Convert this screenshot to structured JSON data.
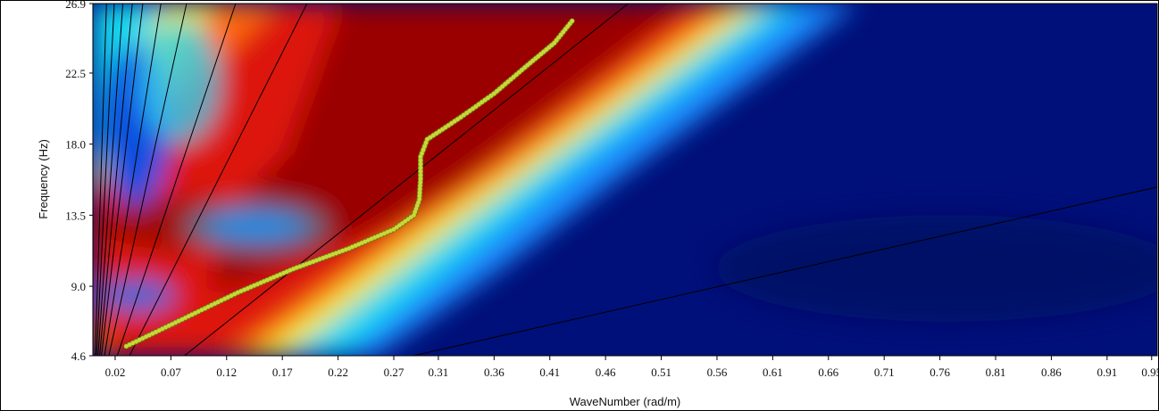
{
  "chart_data": {
    "type": "heatmap",
    "title": "",
    "xlabel": "WaveNumber (rad/m)",
    "ylabel": "Frequency (Hz)",
    "x_ticks": [
      "0.02",
      "0.07",
      "0.12",
      "0.17",
      "0.22",
      "0.27",
      "0.31",
      "0.36",
      "0.41",
      "0.46",
      "0.51",
      "0.56",
      "0.61",
      "0.66",
      "0.71",
      "0.76",
      "0.81",
      "0.86",
      "0.91",
      "0.95"
    ],
    "y_ticks": [
      "4.6",
      "9.0",
      "13.5",
      "18.0",
      "22.5",
      "26.9"
    ],
    "xlim": [
      0.0,
      0.955
    ],
    "ylim": [
      4.6,
      26.9
    ],
    "colormap": "jet",
    "grid": false,
    "velocity_lines_slope_hz_per_rad_m": [
      2200,
      1400,
      1000,
      760,
      600,
      440,
      320,
      210,
      140,
      56,
      16
    ],
    "dispersion_curve": {
      "name": "",
      "color": "#c8d838",
      "points": [
        {
          "x": 0.03,
          "y": 5.2
        },
        {
          "x": 0.08,
          "y": 6.9
        },
        {
          "x": 0.13,
          "y": 8.6
        },
        {
          "x": 0.18,
          "y": 10.1
        },
        {
          "x": 0.23,
          "y": 11.4
        },
        {
          "x": 0.27,
          "y": 12.6
        },
        {
          "x": 0.288,
          "y": 13.5
        },
        {
          "x": 0.293,
          "y": 14.5
        },
        {
          "x": 0.294,
          "y": 15.8
        },
        {
          "x": 0.294,
          "y": 17.2
        },
        {
          "x": 0.3,
          "y": 18.3
        },
        {
          "x": 0.33,
          "y": 19.7
        },
        {
          "x": 0.36,
          "y": 21.2
        },
        {
          "x": 0.39,
          "y": 23.0
        },
        {
          "x": 0.414,
          "y": 24.4
        },
        {
          "x": 0.43,
          "y": 25.8
        }
      ]
    }
  }
}
